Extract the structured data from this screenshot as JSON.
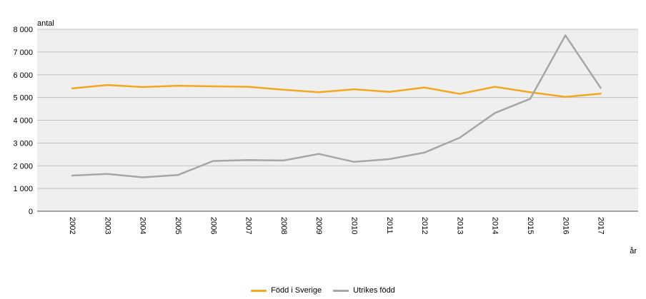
{
  "chart_data": {
    "type": "line",
    "ylabel": "antal",
    "xlabel": "år",
    "ylim": [
      0,
      8000
    ],
    "yticks": [
      0,
      1000,
      2000,
      3000,
      4000,
      5000,
      6000,
      7000,
      8000
    ],
    "ytick_labels": [
      "0",
      "1 000",
      "2 000",
      "3 000",
      "4 000",
      "5 000",
      "6 000",
      "7 000",
      "8 000"
    ],
    "categories": [
      "2002",
      "2003",
      "2004",
      "2005",
      "2006",
      "2007",
      "2008",
      "2009",
      "2010",
      "2011",
      "2012",
      "2013",
      "2014",
      "2015",
      "2016",
      "2017"
    ],
    "grid": true,
    "legend_position": "bottom",
    "series": [
      {
        "name": "Född i Sverige",
        "color": "#f2a81d",
        "values": [
          5400,
          5550,
          5460,
          5520,
          5490,
          5470,
          5340,
          5230,
          5360,
          5250,
          5440,
          5160,
          5470,
          5230,
          5030,
          5170
        ]
      },
      {
        "name": "Utrikes född",
        "color": "#a6a6a6",
        "values": [
          1570,
          1640,
          1490,
          1590,
          2210,
          2250,
          2230,
          2520,
          2170,
          2290,
          2580,
          3230,
          4320,
          4940,
          7730,
          5420
        ]
      }
    ]
  }
}
